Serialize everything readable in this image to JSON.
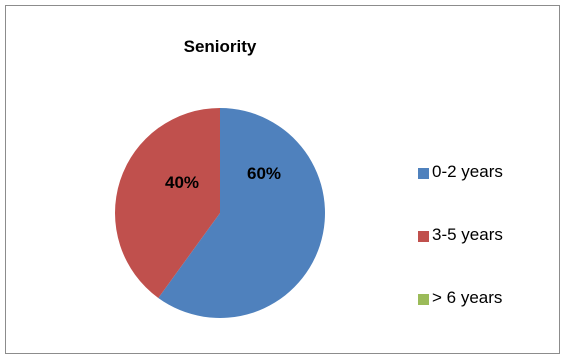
{
  "chart_data": {
    "type": "pie",
    "title": "Seniority",
    "categories": [
      "0-2 years",
      "3-5 years",
      "> 6 years"
    ],
    "values": [
      60,
      40,
      0
    ],
    "data_labels": [
      "60%",
      "40%",
      ""
    ],
    "colors": [
      "#4f81bd",
      "#c0504d",
      "#9bbb59"
    ],
    "legend_position": "right"
  }
}
